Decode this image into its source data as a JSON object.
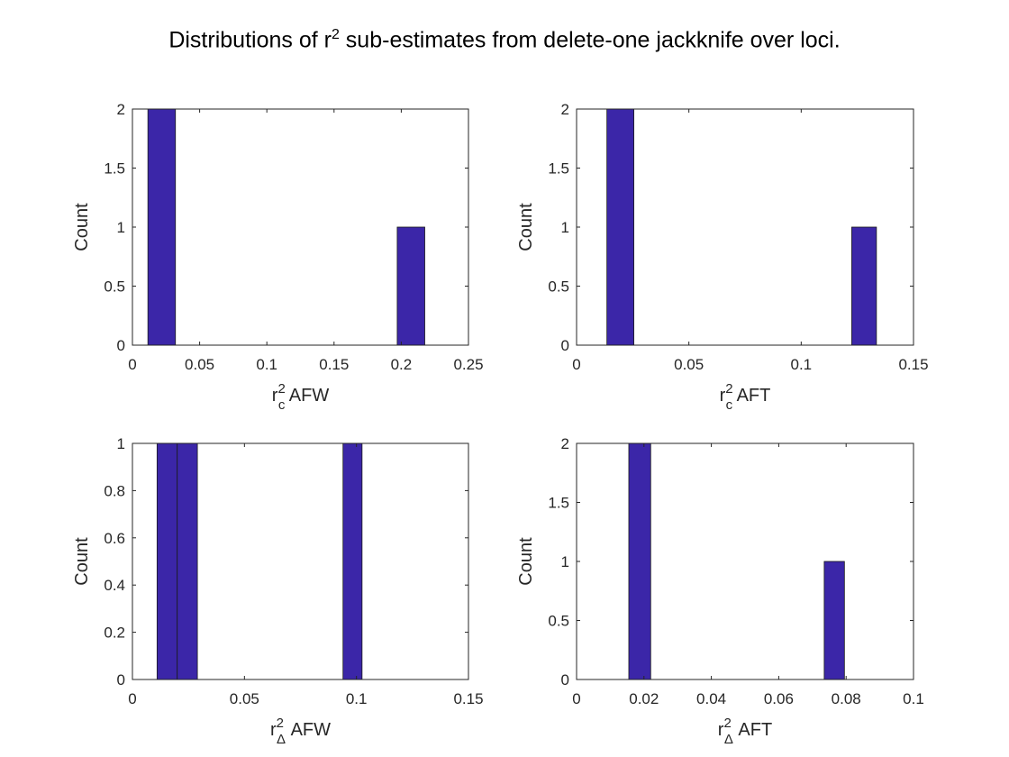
{
  "figure": {
    "title_prefix": "Distributions of r",
    "title_sup": "2",
    "title_suffix": " sub-estimates from delete-one jackknife over loci."
  },
  "colors": {
    "bar_fill": "#3b26a8",
    "bar_edge": "#1a1a1a",
    "axis": "#262626",
    "background": "#ffffff"
  },
  "chart_data": [
    {
      "type": "bar",
      "name": "histogram-rc2-afw",
      "xlabel": {
        "base": "r",
        "sup": "2",
        "sub": "c",
        "rest": " AFW"
      },
      "ylabel": "Count",
      "xlim": [
        0,
        0.25
      ],
      "ylim": [
        0,
        2
      ],
      "xticks": [
        0,
        0.05,
        0.1,
        0.15,
        0.2,
        0.25
      ],
      "xtick_labels": [
        "0",
        "0.05",
        "0.1",
        "0.15",
        "0.2",
        "0.25"
      ],
      "yticks": [
        0,
        0.5,
        1,
        1.5,
        2
      ],
      "ytick_labels": [
        "0",
        "0.5",
        "1",
        "1.5",
        "2"
      ],
      "bins": [
        {
          "x0": 0.0115,
          "x1": 0.032,
          "count": 2
        },
        {
          "x0": 0.197,
          "x1": 0.2175,
          "count": 1
        }
      ]
    },
    {
      "type": "bar",
      "name": "histogram-rc2-aft",
      "xlabel": {
        "base": "r",
        "sup": "2",
        "sub": "c",
        "rest": " AFT"
      },
      "ylabel": "Count",
      "xlim": [
        0,
        0.15
      ],
      "ylim": [
        0,
        2
      ],
      "xticks": [
        0,
        0.05,
        0.1,
        0.15
      ],
      "xtick_labels": [
        "0",
        "0.05",
        "0.1",
        "0.15"
      ],
      "yticks": [
        0,
        0.5,
        1,
        1.5,
        2
      ],
      "ytick_labels": [
        "0",
        "0.5",
        "1",
        "1.5",
        "2"
      ],
      "bins": [
        {
          "x0": 0.0135,
          "x1": 0.0255,
          "count": 2
        },
        {
          "x0": 0.1225,
          "x1": 0.1335,
          "count": 1
        }
      ]
    },
    {
      "type": "bar",
      "name": "histogram-rdelta2-afw",
      "xlabel": {
        "base": "r",
        "sup": "2",
        "sub": "Δ",
        "rest": " AFW"
      },
      "ylabel": "Count",
      "xlim": [
        0,
        0.15
      ],
      "ylim": [
        0,
        1
      ],
      "xticks": [
        0,
        0.05,
        0.1,
        0.15
      ],
      "xtick_labels": [
        "0",
        "0.05",
        "0.1",
        "0.15"
      ],
      "yticks": [
        0,
        0.2,
        0.4,
        0.6,
        0.8,
        1
      ],
      "ytick_labels": [
        "0",
        "0.2",
        "0.4",
        "0.6",
        "0.8",
        "1"
      ],
      "bins": [
        {
          "x0": 0.011,
          "x1": 0.02,
          "count": 1
        },
        {
          "x0": 0.02,
          "x1": 0.029,
          "count": 1
        },
        {
          "x0": 0.094,
          "x1": 0.1025,
          "count": 1
        }
      ]
    },
    {
      "type": "bar",
      "name": "histogram-rdelta2-aft",
      "xlabel": {
        "base": "r",
        "sup": "2",
        "sub": "Δ",
        "rest": " AFT"
      },
      "ylabel": "Count",
      "xlim": [
        0,
        0.1
      ],
      "ylim": [
        0,
        2
      ],
      "xticks": [
        0,
        0.02,
        0.04,
        0.06,
        0.08,
        0.1
      ],
      "xtick_labels": [
        "0",
        "0.02",
        "0.04",
        "0.06",
        "0.08",
        "0.1"
      ],
      "yticks": [
        0,
        0.5,
        1,
        1.5,
        2
      ],
      "ytick_labels": [
        "0",
        "0.5",
        "1",
        "1.5",
        "2"
      ],
      "bins": [
        {
          "x0": 0.0155,
          "x1": 0.022,
          "count": 2
        },
        {
          "x0": 0.0735,
          "x1": 0.0795,
          "count": 1
        }
      ]
    }
  ]
}
